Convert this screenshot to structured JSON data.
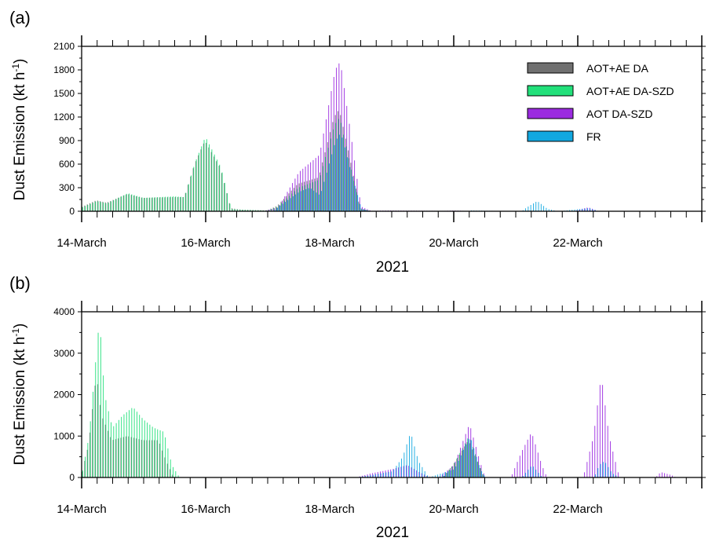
{
  "colors": {
    "aot_ae_da": "#707070",
    "aot_ae_da_szd": "#22e07a",
    "aot_da_szd": "#9b2be0",
    "fr": "#12a8e0"
  },
  "chart_data": [
    {
      "type": "bar",
      "panel_label": "(a)",
      "ylabel": "Dust Emission (kt h",
      "ylabel_sup": "-1",
      "ylabel_close": ")",
      "xlabel": "2021",
      "ylim": [
        0,
        2100
      ],
      "yticks": [
        0,
        300,
        600,
        900,
        1200,
        1500,
        1800,
        2100
      ],
      "xlim": [
        0,
        240
      ],
      "x_tick_labels": [
        {
          "x": 0,
          "label": "14-March"
        },
        {
          "x": 48,
          "label": "16-March"
        },
        {
          "x": 96,
          "label": "18-March"
        },
        {
          "x": 144,
          "label": "20-March"
        },
        {
          "x": 192,
          "label": "22-March"
        }
      ],
      "legend": {
        "position": "top-right",
        "entries": [
          "AOT+AE DA",
          "AOT+AE DA-SZD",
          "AOT DA-SZD",
          "FR"
        ]
      },
      "grid": false,
      "series": [
        {
          "name": "AOT+AE DA",
          "key": "aot_ae_da",
          "points": [
            [
              0,
              50
            ],
            [
              6,
              140
            ],
            [
              10,
              110
            ],
            [
              18,
              220
            ],
            [
              24,
              170
            ],
            [
              36,
              180
            ],
            [
              40,
              180
            ],
            [
              44,
              600
            ],
            [
              48,
              900
            ],
            [
              54,
              550
            ],
            [
              58,
              40
            ],
            [
              62,
              20
            ],
            [
              72,
              10
            ],
            [
              76,
              70
            ],
            [
              84,
              350
            ],
            [
              92,
              430
            ],
            [
              98,
              1200
            ],
            [
              100,
              1300
            ],
            [
              104,
              700
            ],
            [
              108,
              40
            ],
            [
              112,
              5
            ],
            [
              240,
              0
            ]
          ]
        },
        {
          "name": "AOT+AE DA-SZD",
          "key": "aot_ae_da_szd",
          "points": [
            [
              0,
              45
            ],
            [
              6,
              130
            ],
            [
              10,
              100
            ],
            [
              18,
              230
            ],
            [
              24,
              170
            ],
            [
              36,
              190
            ],
            [
              40,
              180
            ],
            [
              44,
              620
            ],
            [
              48,
              950
            ],
            [
              54,
              560
            ],
            [
              58,
              30
            ],
            [
              62,
              20
            ],
            [
              72,
              10
            ],
            [
              76,
              60
            ],
            [
              84,
              300
            ],
            [
              92,
              400
            ],
            [
              98,
              1100
            ],
            [
              100,
              1200
            ],
            [
              104,
              600
            ],
            [
              108,
              30
            ],
            [
              112,
              5
            ],
            [
              240,
              0
            ]
          ]
        },
        {
          "name": "AOT DA-SZD",
          "key": "aot_da_szd",
          "points": [
            [
              0,
              0
            ],
            [
              70,
              0
            ],
            [
              76,
              50
            ],
            [
              84,
              500
            ],
            [
              92,
              720
            ],
            [
              98,
              1800
            ],
            [
              100,
              1910
            ],
            [
              104,
              1000
            ],
            [
              108,
              60
            ],
            [
              112,
              5
            ],
            [
              118,
              10
            ],
            [
              140,
              5
            ],
            [
              144,
              10
            ],
            [
              148,
              5
            ],
            [
              190,
              0
            ],
            [
              196,
              50
            ],
            [
              200,
              0
            ],
            [
              240,
              0
            ]
          ]
        },
        {
          "name": "FR",
          "key": "fr",
          "points": [
            [
              0,
              0
            ],
            [
              74,
              0
            ],
            [
              76,
              60
            ],
            [
              84,
              250
            ],
            [
              88,
              300
            ],
            [
              92,
              200
            ],
            [
              98,
              900
            ],
            [
              100,
              1000
            ],
            [
              104,
              500
            ],
            [
              108,
              30
            ],
            [
              112,
              0
            ],
            [
              150,
              0
            ],
            [
              150,
              10
            ],
            [
              170,
              0
            ],
            [
              172,
              50
            ],
            [
              176,
              130
            ],
            [
              180,
              30
            ],
            [
              184,
              0
            ],
            [
              196,
              40
            ],
            [
              200,
              0
            ],
            [
              240,
              0
            ]
          ]
        }
      ]
    },
    {
      "type": "bar",
      "panel_label": "(b)",
      "ylabel": "Dust Emission (kt h",
      "ylabel_sup": "-1",
      "ylabel_close": ")",
      "xlabel": "2021",
      "ylim": [
        0,
        4000
      ],
      "yticks": [
        0,
        1000,
        2000,
        3000,
        4000
      ],
      "xlim": [
        0,
        240
      ],
      "x_tick_labels": [
        {
          "x": 0,
          "label": "14-March"
        },
        {
          "x": 48,
          "label": "16-March"
        },
        {
          "x": 96,
          "label": "18-March"
        },
        {
          "x": 144,
          "label": "20-March"
        },
        {
          "x": 192,
          "label": "22-March"
        }
      ],
      "grid": false,
      "series": [
        {
          "name": "AOT+AE DA",
          "key": "aot_ae_da",
          "points": [
            [
              0,
              0
            ],
            [
              3,
              800
            ],
            [
              6,
              2500
            ],
            [
              8,
              1500
            ],
            [
              12,
              900
            ],
            [
              18,
              1000
            ],
            [
              24,
              900
            ],
            [
              30,
              900
            ],
            [
              33,
              400
            ],
            [
              36,
              0
            ],
            [
              140,
              0
            ],
            [
              144,
              300
            ],
            [
              150,
              900
            ],
            [
              154,
              300
            ],
            [
              156,
              0
            ],
            [
              240,
              0
            ]
          ]
        },
        {
          "name": "AOT+AE DA-SZD",
          "key": "aot_ae_da_szd",
          "points": [
            [
              0,
              0
            ],
            [
              3,
              1000
            ],
            [
              7,
              3850
            ],
            [
              9,
              2000
            ],
            [
              12,
              1200
            ],
            [
              16,
              1500
            ],
            [
              20,
              1700
            ],
            [
              24,
              1400
            ],
            [
              28,
              1200
            ],
            [
              32,
              1100
            ],
            [
              35,
              300
            ],
            [
              38,
              0
            ],
            [
              140,
              0
            ],
            [
              144,
              300
            ],
            [
              150,
              1000
            ],
            [
              154,
              300
            ],
            [
              156,
              0
            ],
            [
              240,
              0
            ]
          ]
        },
        {
          "name": "AOT DA-SZD",
          "key": "aot_da_szd",
          "points": [
            [
              0,
              0
            ],
            [
              106,
              0
            ],
            [
              112,
              100
            ],
            [
              120,
              200
            ],
            [
              126,
              300
            ],
            [
              130,
              150
            ],
            [
              134,
              20
            ],
            [
              138,
              0
            ],
            [
              144,
              300
            ],
            [
              150,
              1300
            ],
            [
              154,
              400
            ],
            [
              156,
              0
            ],
            [
              166,
              0
            ],
            [
              170,
              600
            ],
            [
              174,
              1100
            ],
            [
              178,
              300
            ],
            [
              180,
              0
            ],
            [
              194,
              0
            ],
            [
              198,
              1000
            ],
            [
              201,
              2480
            ],
            [
              204,
              1000
            ],
            [
              208,
              0
            ],
            [
              222,
              0
            ],
            [
              224,
              130
            ],
            [
              228,
              60
            ],
            [
              230,
              0
            ],
            [
              240,
              0
            ]
          ]
        },
        {
          "name": "FR",
          "key": "fr",
          "points": [
            [
              0,
              0
            ],
            [
              106,
              0
            ],
            [
              112,
              60
            ],
            [
              120,
              150
            ],
            [
              124,
              500
            ],
            [
              127,
              1100
            ],
            [
              130,
              400
            ],
            [
              134,
              0
            ],
            [
              144,
              200
            ],
            [
              150,
              1000
            ],
            [
              154,
              200
            ],
            [
              156,
              0
            ],
            [
              170,
              0
            ],
            [
              174,
              300
            ],
            [
              178,
              0
            ],
            [
              198,
              0
            ],
            [
              200,
              300
            ],
            [
              202,
              400
            ],
            [
              205,
              100
            ],
            [
              208,
              0
            ],
            [
              240,
              0
            ]
          ]
        }
      ]
    }
  ]
}
